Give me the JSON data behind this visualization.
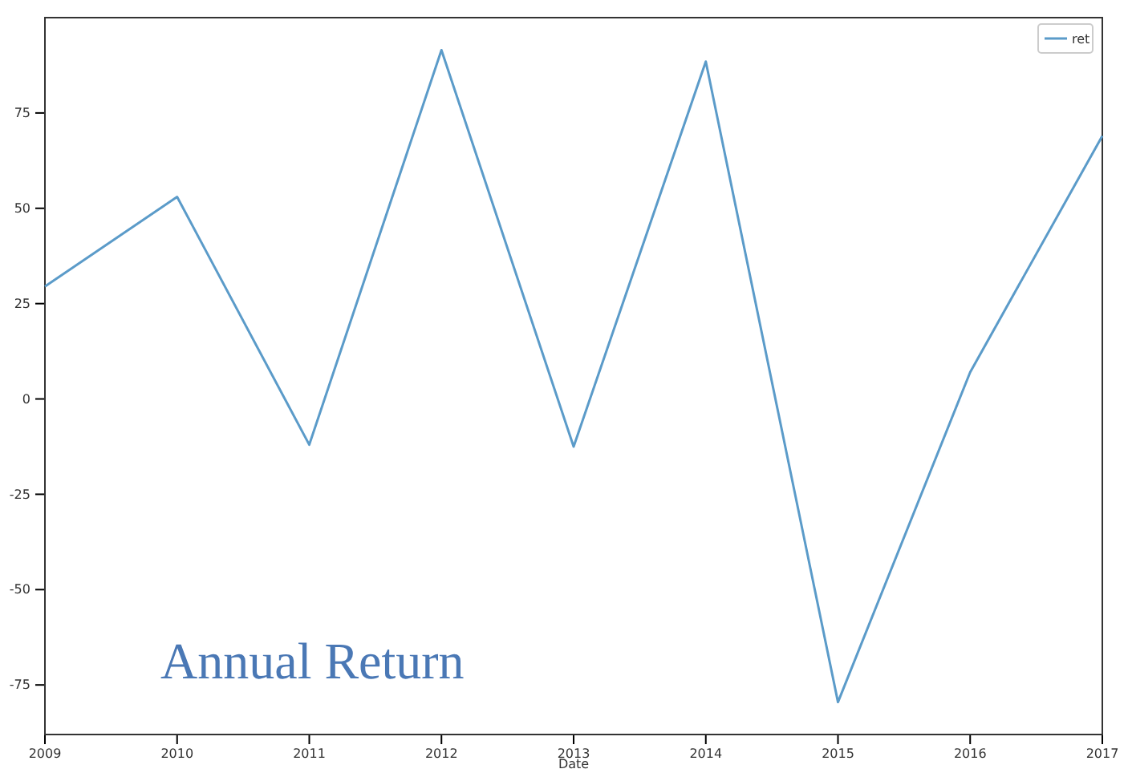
{
  "chart_data": {
    "type": "line",
    "title": "Annual Return",
    "xlabel": "Date",
    "x": [
      2009,
      2010,
      2011,
      2012,
      2013,
      2014,
      2015,
      2016,
      2017
    ],
    "series": [
      {
        "name": "ret",
        "color": "#5b9bc9",
        "values": [
          29.5,
          53,
          -12,
          91.5,
          -12.5,
          88.5,
          -79.5,
          7,
          69
        ]
      }
    ],
    "xlim": [
      2009,
      2017
    ],
    "xticks": [
      2009,
      2010,
      2011,
      2012,
      2013,
      2014,
      2015,
      2016,
      2017
    ],
    "ylim": [
      -88,
      100
    ],
    "yticks": [
      -75,
      -50,
      -25,
      0,
      25,
      50,
      75
    ],
    "grid": false,
    "legend": "top right",
    "marker": "none",
    "line_style": "solid"
  }
}
